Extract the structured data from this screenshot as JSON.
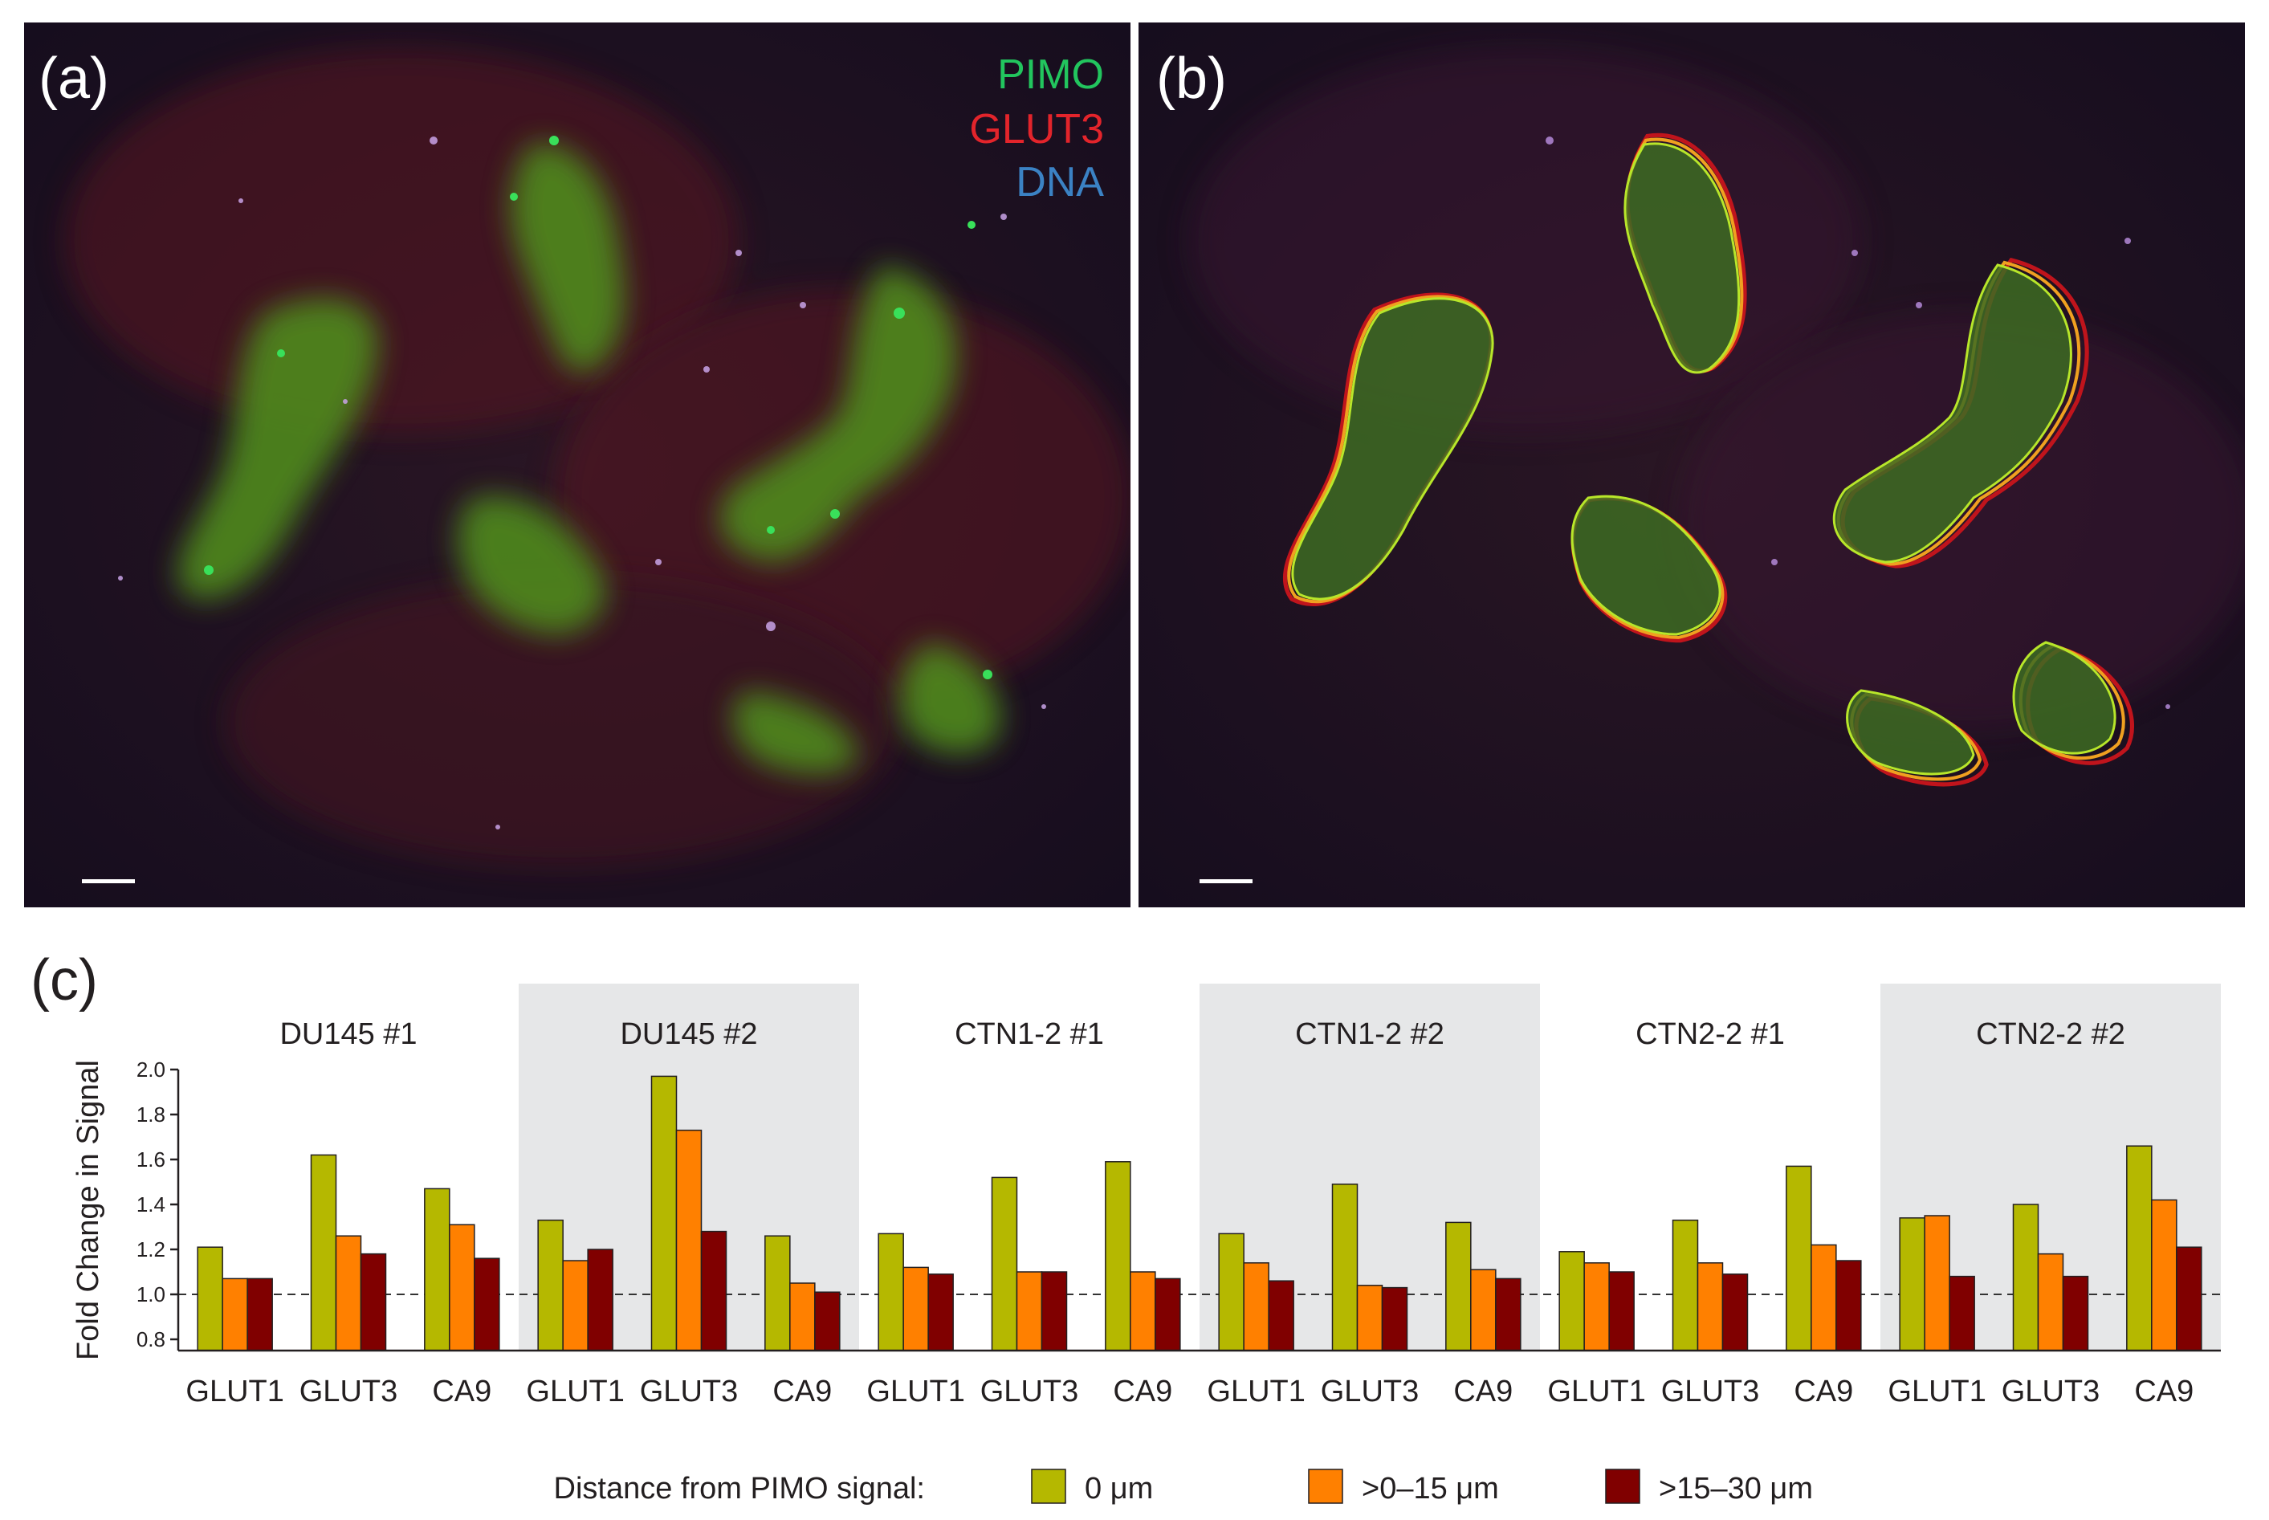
{
  "panels": {
    "a": {
      "label": "(a)"
    },
    "b": {
      "label": "(b)"
    },
    "c": {
      "label": "(c)"
    }
  },
  "legend_image": [
    {
      "text": "PIMO",
      "color": "#22c55e"
    },
    {
      "text": "GLUT3",
      "color": "#e3242b"
    },
    {
      "text": "DNA",
      "color": "#3b82c4"
    }
  ],
  "colors": {
    "image_background": "#1c1226",
    "hypoxic_region": "#4f8a1f",
    "contour_0um": "#b8e62a",
    "contour_15um": "#f0a020",
    "contour_30um": "#c0141c",
    "group_shade": "#e6e7e8"
  },
  "chart_data": {
    "type": "bar",
    "ylabel": "Fold Change in Signal",
    "xlabel": "",
    "ylim": [
      0.75,
      2.0
    ],
    "yticks": [
      "0.8",
      "1.0",
      "1.2",
      "1.4",
      "1.6",
      "1.8",
      "2.0"
    ],
    "reference_line": 1.0,
    "legend_title": "Distance from PIMO signal:",
    "series": [
      {
        "name": "0 μm",
        "color": "#b5b800"
      },
      {
        "name": ">0–15 μm",
        "color": "#ff8000"
      },
      {
        "name": ">15–30 μm",
        "color": "#800000"
      }
    ],
    "groups": [
      {
        "name": "DU145 #1",
        "shaded": false,
        "markers": [
          {
            "marker": "GLUT1",
            "values": [
              1.21,
              1.07,
              1.07
            ]
          },
          {
            "marker": "GLUT3",
            "values": [
              1.62,
              1.26,
              1.18
            ]
          },
          {
            "marker": "CA9",
            "values": [
              1.47,
              1.31,
              1.16
            ]
          }
        ]
      },
      {
        "name": "DU145 #2",
        "shaded": true,
        "markers": [
          {
            "marker": "GLUT1",
            "values": [
              1.33,
              1.15,
              1.2
            ]
          },
          {
            "marker": "GLUT3",
            "values": [
              1.97,
              1.73,
              1.28
            ]
          },
          {
            "marker": "CA9",
            "values": [
              1.26,
              1.05,
              1.01
            ]
          }
        ]
      },
      {
        "name": "CTN1-2 #1",
        "shaded": false,
        "markers": [
          {
            "marker": "GLUT1",
            "values": [
              1.27,
              1.12,
              1.09
            ]
          },
          {
            "marker": "GLUT3",
            "values": [
              1.52,
              1.1,
              1.1
            ]
          },
          {
            "marker": "CA9",
            "values": [
              1.59,
              1.1,
              1.07
            ]
          }
        ]
      },
      {
        "name": "CTN1-2 #2",
        "shaded": true,
        "markers": [
          {
            "marker": "GLUT1",
            "values": [
              1.27,
              1.14,
              1.06
            ]
          },
          {
            "marker": "GLUT3",
            "values": [
              1.49,
              1.04,
              1.03
            ]
          },
          {
            "marker": "CA9",
            "values": [
              1.32,
              1.11,
              1.07
            ]
          }
        ]
      },
      {
        "name": "CTN2-2 #1",
        "shaded": false,
        "markers": [
          {
            "marker": "GLUT1",
            "values": [
              1.19,
              1.14,
              1.1
            ]
          },
          {
            "marker": "GLUT3",
            "values": [
              1.33,
              1.14,
              1.09
            ]
          },
          {
            "marker": "CA9",
            "values": [
              1.57,
              1.22,
              1.15
            ]
          }
        ]
      },
      {
        "name": "CTN2-2 #2",
        "shaded": true,
        "markers": [
          {
            "marker": "GLUT1",
            "values": [
              1.34,
              1.35,
              1.08
            ]
          },
          {
            "marker": "GLUT3",
            "values": [
              1.4,
              1.18,
              1.08
            ]
          },
          {
            "marker": "CA9",
            "values": [
              1.66,
              1.42,
              1.21
            ]
          }
        ]
      }
    ]
  }
}
